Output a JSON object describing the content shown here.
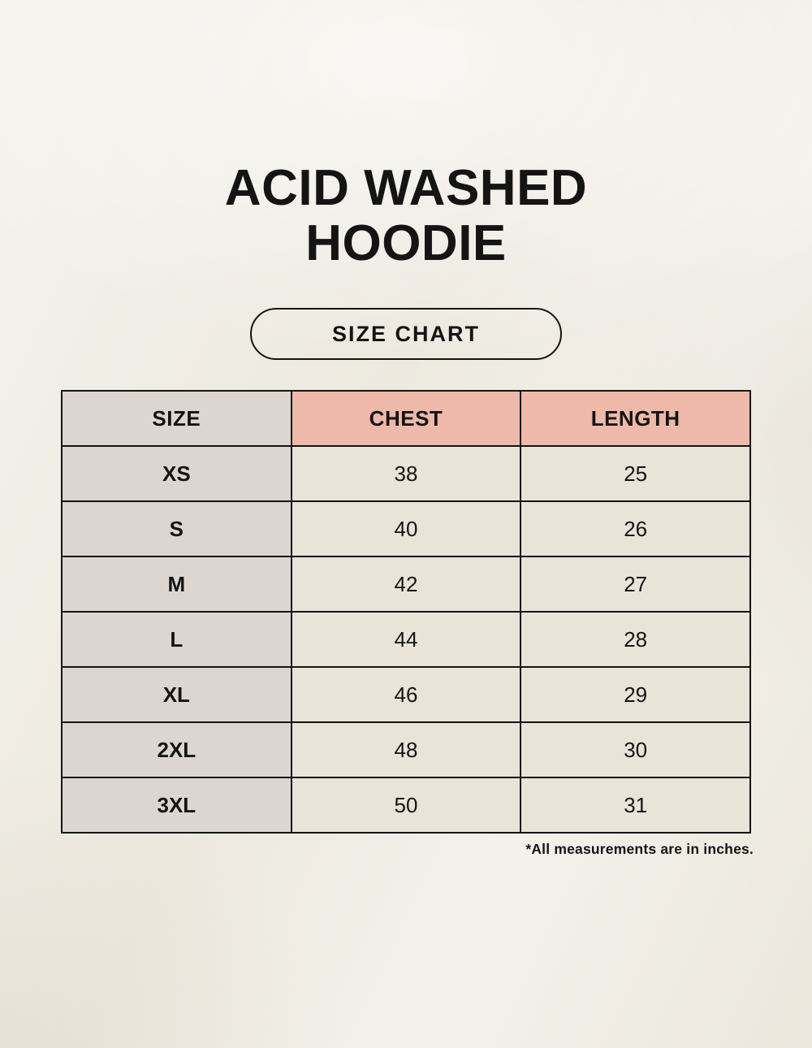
{
  "header": {
    "title_lines": [
      "ACID WASHED",
      "HOODIE"
    ],
    "badge_label": "SIZE CHART"
  },
  "table": {
    "headers": [
      "SIZE",
      "CHEST",
      "LENGTH"
    ],
    "rows": [
      {
        "size": "XS",
        "chest": "38",
        "length": "25"
      },
      {
        "size": "S",
        "chest": "40",
        "length": "26"
      },
      {
        "size": "M",
        "chest": "42",
        "length": "27"
      },
      {
        "size": "L",
        "chest": "44",
        "length": "28"
      },
      {
        "size": "XL",
        "chest": "46",
        "length": "29"
      },
      {
        "size": "2XL",
        "chest": "48",
        "length": "30"
      },
      {
        "size": "3XL",
        "chest": "50",
        "length": "31"
      }
    ],
    "footnote": "*All measurements are in inches."
  },
  "colors": {
    "page_background": "#efece3",
    "accent_header_pink": "#eeb9a9",
    "size_column_gray": "#ddd6d0",
    "data_cell_cream": "#eae3d8",
    "border": "#141414",
    "text": "#141414"
  },
  "chart_data": {
    "type": "table",
    "title": "ACID WASHED HOODIE",
    "subtitle": "SIZE CHART",
    "columns": [
      "SIZE",
      "CHEST",
      "LENGTH"
    ],
    "rows": [
      [
        "XS",
        38,
        25
      ],
      [
        "S",
        40,
        26
      ],
      [
        "M",
        42,
        27
      ],
      [
        "L",
        44,
        28
      ],
      [
        "XL",
        46,
        29
      ],
      [
        "2XL",
        48,
        30
      ],
      [
        "3XL",
        50,
        31
      ]
    ],
    "units": "inches",
    "note": "*All measurements are in inches."
  }
}
